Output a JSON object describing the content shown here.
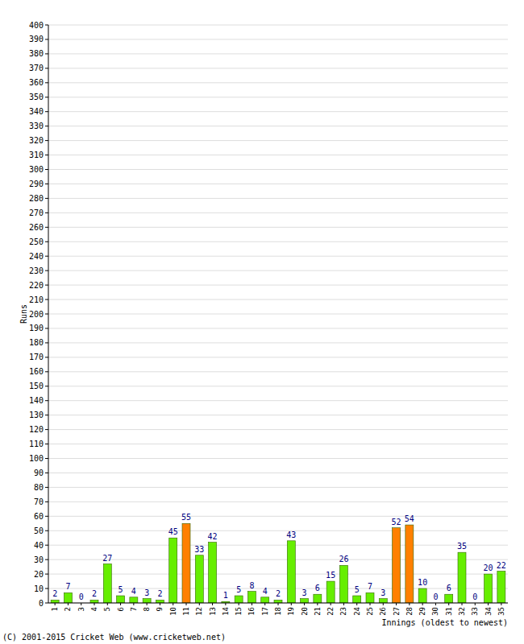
{
  "chart_data": {
    "type": "bar",
    "categories": [
      "1",
      "2",
      "3",
      "4",
      "5",
      "6",
      "7",
      "8",
      "9",
      "10",
      "11",
      "12",
      "13",
      "14",
      "15",
      "16",
      "17",
      "18",
      "19",
      "20",
      "21",
      "22",
      "23",
      "24",
      "25",
      "26",
      "27",
      "28",
      "29",
      "30",
      "31",
      "32",
      "33",
      "34",
      "35"
    ],
    "values": [
      2,
      7,
      0,
      2,
      27,
      5,
      4,
      3,
      2,
      45,
      55,
      33,
      42,
      1,
      5,
      8,
      4,
      2,
      43,
      3,
      6,
      15,
      26,
      5,
      7,
      3,
      52,
      54,
      10,
      0,
      6,
      35,
      0,
      20,
      22
    ],
    "colors": [
      "#66ee00",
      "#66ee00",
      "#66ee00",
      "#66ee00",
      "#66ee00",
      "#66ee00",
      "#66ee00",
      "#66ee00",
      "#66ee00",
      "#66ee00",
      "#ff8000",
      "#66ee00",
      "#66ee00",
      "#66ee00",
      "#66ee00",
      "#66ee00",
      "#66ee00",
      "#66ee00",
      "#66ee00",
      "#66ee00",
      "#66ee00",
      "#66ee00",
      "#66ee00",
      "#66ee00",
      "#66ee00",
      "#66ee00",
      "#ff8000",
      "#ff8000",
      "#66ee00",
      "#66ee00",
      "#66ee00",
      "#66ee00",
      "#66ee00",
      "#66ee00",
      "#66ee00"
    ],
    "ylabel": "Runs",
    "xlabel": "Innings (oldest to newest)",
    "annotations": [
      "(C) 2001-2015 Cricket Web (www.cricketweb.net)"
    ],
    "ylim": [
      0,
      400
    ],
    "yticks": [
      0,
      10,
      20,
      30,
      40,
      50,
      60,
      70,
      80,
      90,
      100,
      110,
      120,
      130,
      140,
      150,
      160,
      170,
      180,
      190,
      200,
      210,
      220,
      230,
      240,
      250,
      260,
      270,
      280,
      290,
      300,
      310,
      320,
      330,
      340,
      350,
      360,
      370,
      380,
      390,
      400
    ],
    "grid": true,
    "data_labels": true
  }
}
